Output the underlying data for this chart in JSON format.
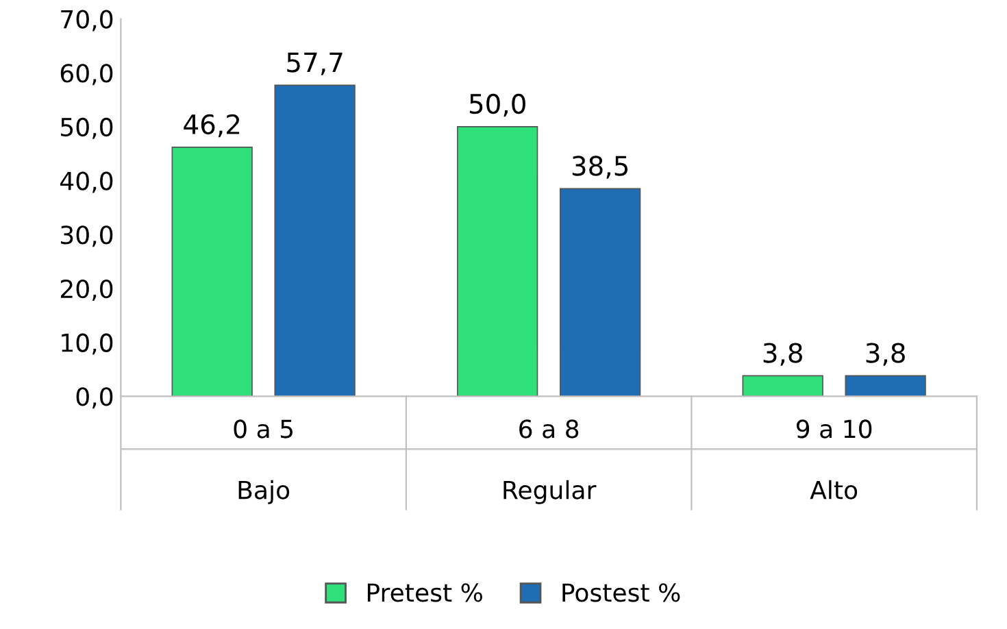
{
  "chart_data": {
    "type": "bar",
    "categories": [
      "0 a 5\n\nBajo",
      "6 a 8\n\nRegular",
      "9 a 10\n\nAlto"
    ],
    "series": [
      {
        "name": "Pretest %",
        "color": "#2fe07a",
        "values": [
          46.2,
          50.0,
          3.8
        ],
        "value_labels": [
          "46,2",
          "50,0",
          "3,8"
        ]
      },
      {
        "name": "Postest %",
        "color": "#1f6db3",
        "values": [
          57.7,
          38.5,
          3.8
        ],
        "value_labels": [
          "57,7",
          "38,5",
          "3,8"
        ]
      }
    ],
    "ylim": [
      0,
      70
    ],
    "yticks": [
      {
        "value": 0,
        "label": "0,0"
      },
      {
        "value": 10,
        "label": "10,0"
      },
      {
        "value": 20,
        "label": "20,0"
      },
      {
        "value": 30,
        "label": "30,0"
      },
      {
        "value": 40,
        "label": "40,0"
      },
      {
        "value": 50,
        "label": "50,0"
      },
      {
        "value": 60,
        "label": "60,0"
      },
      {
        "value": 70,
        "label": "70,0"
      }
    ],
    "grid": false,
    "legend": "bottom"
  }
}
